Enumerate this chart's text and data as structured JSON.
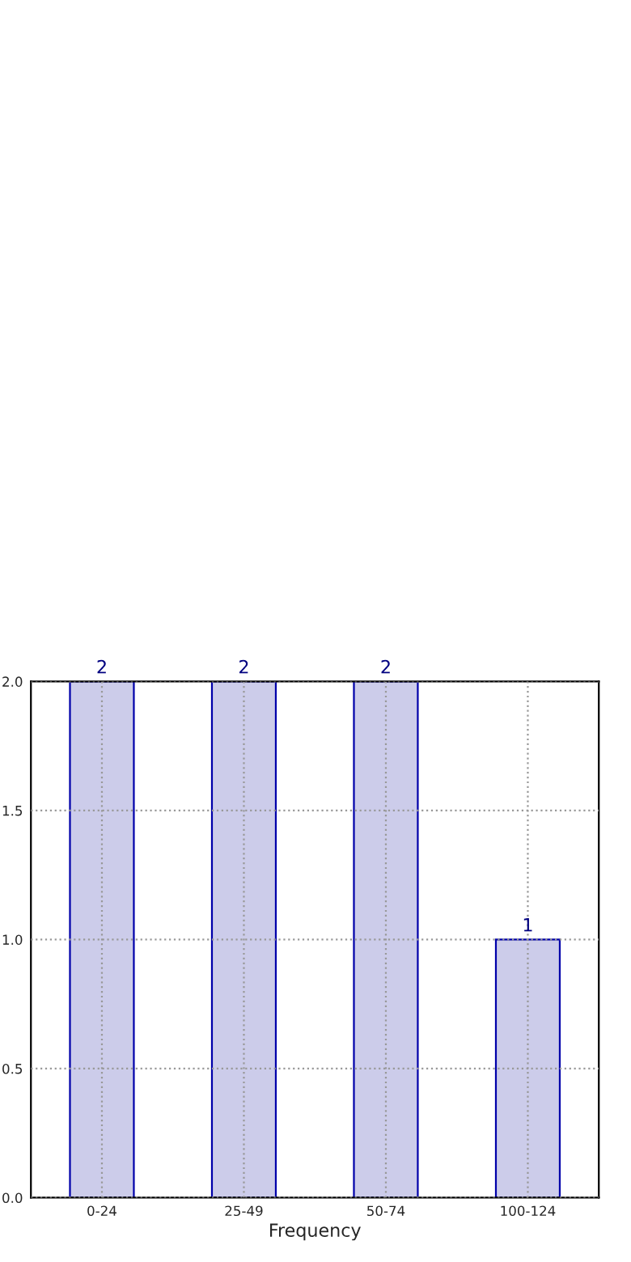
{
  "chart_data": {
    "type": "bar",
    "xlabel": "Frequency",
    "categories": [
      "0-24",
      "25-49",
      "50-74",
      "100-124"
    ],
    "values": [
      2,
      2,
      2,
      1
    ],
    "color": "#ccccea",
    "ylim": [
      0,
      2
    ],
    "yticks": [
      {
        "value": 0,
        "label": "0.0"
      },
      {
        "value": 0.5,
        "label": "0.5"
      },
      {
        "value": 1,
        "label": "1.0"
      },
      {
        "value": 1.5,
        "label": "1.5"
      },
      {
        "value": 2,
        "label": "2.0"
      }
    ],
    "data_labels": true,
    "grid": true
  }
}
